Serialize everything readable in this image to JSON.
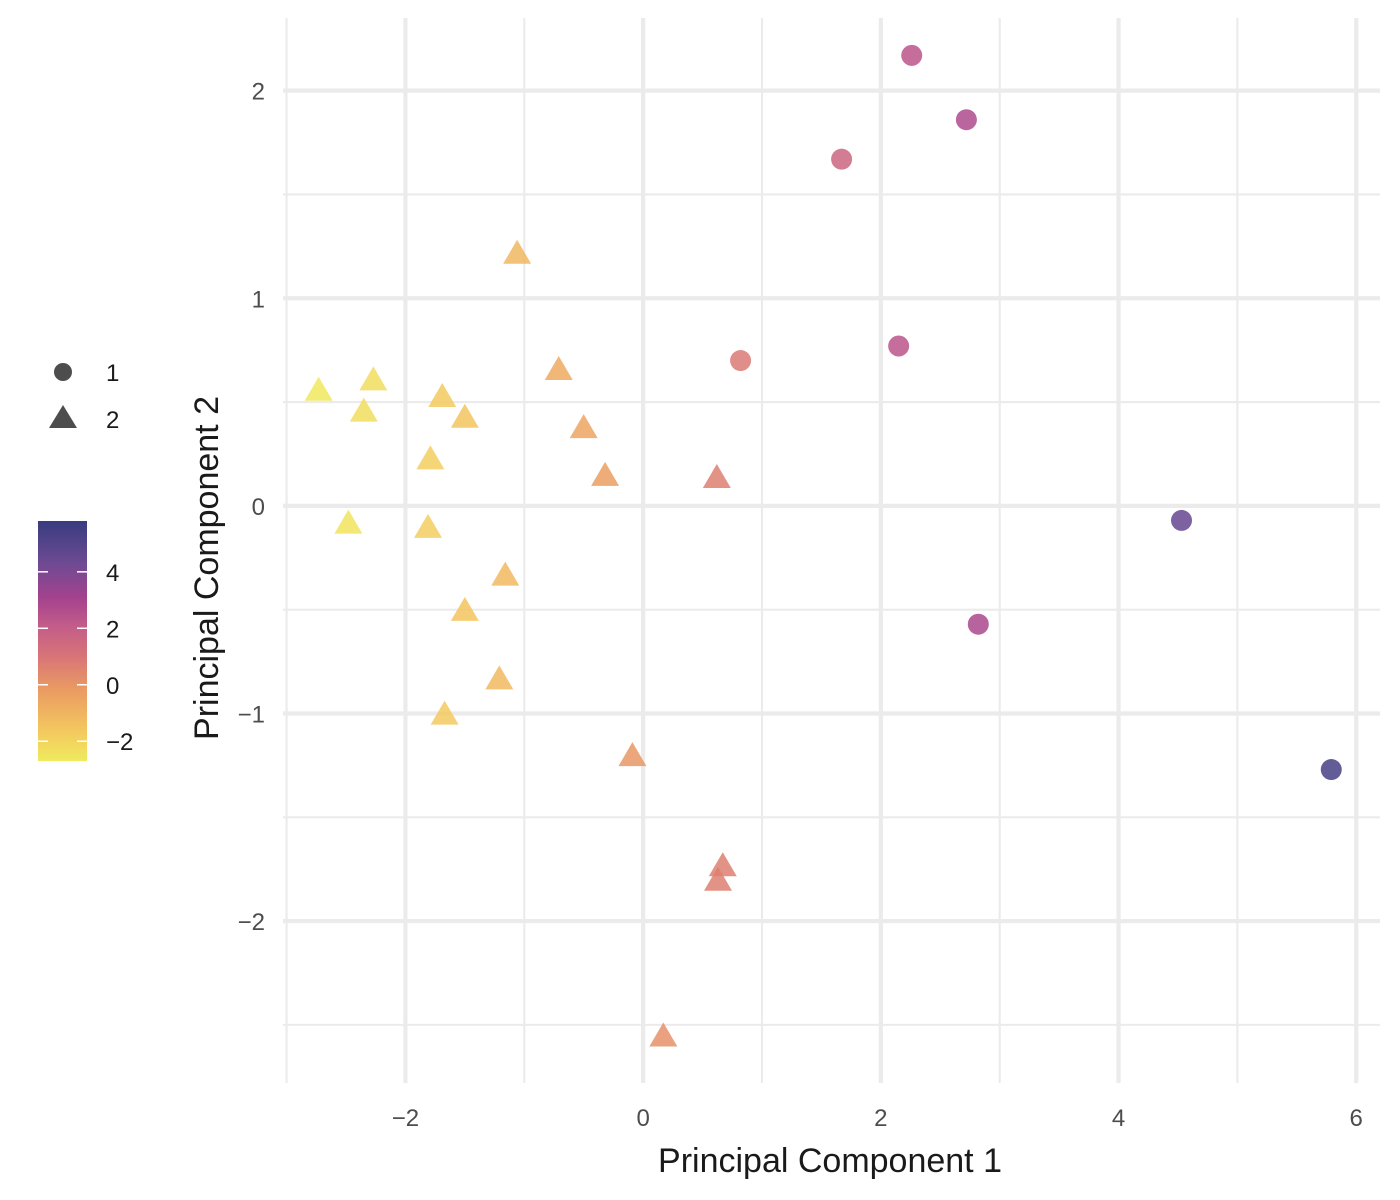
{
  "chart_data": {
    "type": "scatter",
    "title": "",
    "xlabel": "Principal Component 1",
    "ylabel": "Principal Component 2",
    "xlim": [
      -3.03,
      6.2
    ],
    "ylim": [
      -2.78,
      2.35
    ],
    "x_ticks": [
      -2,
      0,
      2,
      4,
      6
    ],
    "x_tick_labels": [
      "−2",
      "0",
      "2",
      "4",
      "6"
    ],
    "y_ticks": [
      -2,
      -1,
      0,
      1,
      2
    ],
    "y_tick_labels": [
      "−2",
      "−1",
      "0",
      "1",
      "2"
    ],
    "x_minor": [
      -3,
      -1,
      1,
      3,
      5
    ],
    "y_minor": [
      -2.5,
      -1.5,
      -0.5,
      0.5,
      1.5
    ],
    "grid": true,
    "legend_position": "left",
    "shape_legend": {
      "title": "",
      "entries": [
        {
          "label": "1",
          "shape": "circle"
        },
        {
          "label": "2",
          "shape": "triangle"
        }
      ]
    },
    "color_legend": {
      "title": "",
      "range": [
        -2.7,
        5.8
      ],
      "ticks": [
        4,
        2,
        0,
        -2
      ],
      "tick_labels": [
        "4",
        "2",
        "0",
        "−2"
      ],
      "palette": [
        "#f0f921",
        "#f1c25d",
        "#e89060",
        "#d77279",
        "#b55699",
        "#7e4a98",
        "#3d3e80"
      ]
    },
    "series": [
      {
        "name": "1",
        "shape": "circle",
        "points": [
          {
            "x": 2.26,
            "y": 2.17,
            "color_value": 2.3
          },
          {
            "x": 2.72,
            "y": 1.86,
            "color_value": 2.7
          },
          {
            "x": 1.67,
            "y": 1.67,
            "color_value": 1.6
          },
          {
            "x": 2.15,
            "y": 0.77,
            "color_value": 2.3
          },
          {
            "x": 0.82,
            "y": 0.7,
            "color_value": 0.8
          },
          {
            "x": 4.53,
            "y": -0.07,
            "color_value": 4.5
          },
          {
            "x": 2.82,
            "y": -0.57,
            "color_value": 2.8
          },
          {
            "x": 5.79,
            "y": -1.27,
            "color_value": 5.4
          }
        ]
      },
      {
        "name": "2",
        "shape": "triangle",
        "points": [
          {
            "x": -1.06,
            "y": 1.21,
            "color_value": -1.1
          },
          {
            "x": -2.27,
            "y": 0.6,
            "color_value": -2.3
          },
          {
            "x": -2.73,
            "y": 0.55,
            "color_value": -2.6
          },
          {
            "x": -0.71,
            "y": 0.65,
            "color_value": -0.7
          },
          {
            "x": -1.69,
            "y": 0.52,
            "color_value": -1.7
          },
          {
            "x": -2.35,
            "y": 0.45,
            "color_value": -2.3
          },
          {
            "x": -1.5,
            "y": 0.42,
            "color_value": -1.5
          },
          {
            "x": -0.5,
            "y": 0.37,
            "color_value": -0.5
          },
          {
            "x": -1.79,
            "y": 0.22,
            "color_value": -1.8
          },
          {
            "x": -0.32,
            "y": 0.14,
            "color_value": -0.3
          },
          {
            "x": 0.62,
            "y": 0.13,
            "color_value": 0.6
          },
          {
            "x": -2.48,
            "y": -0.09,
            "color_value": -2.5
          },
          {
            "x": -1.81,
            "y": -0.11,
            "color_value": -1.8
          },
          {
            "x": -1.16,
            "y": -0.34,
            "color_value": -1.2
          },
          {
            "x": -1.5,
            "y": -0.51,
            "color_value": -1.5
          },
          {
            "x": -1.21,
            "y": -0.84,
            "color_value": -1.2
          },
          {
            "x": -1.67,
            "y": -1.01,
            "color_value": -1.7
          },
          {
            "x": -0.09,
            "y": -1.21,
            "color_value": -0.1
          },
          {
            "x": 0.67,
            "y": -1.74,
            "color_value": 0.6
          },
          {
            "x": 0.63,
            "y": -1.81,
            "color_value": 0.6
          },
          {
            "x": 0.17,
            "y": -2.56,
            "color_value": 0.1
          }
        ]
      }
    ]
  }
}
